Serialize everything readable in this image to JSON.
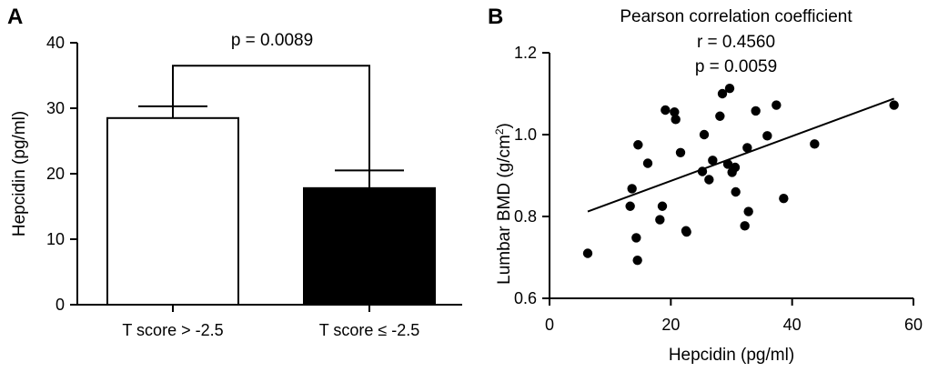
{
  "chart_data": [
    {
      "panel": "A",
      "type": "bar",
      "ylabel": "Hepcidin (pg/ml)",
      "xlabel": "",
      "ylim": [
        0,
        40
      ],
      "yticks": [
        0,
        10,
        20,
        30,
        40
      ],
      "categories": [
        "T score > -2.5",
        "T score ≤ -2.5"
      ],
      "values": [
        28.5,
        17.8
      ],
      "errors": [
        1.8,
        2.7
      ],
      "fills": [
        "#ffffff",
        "#000000"
      ],
      "significance": {
        "label": "p = 0.0089",
        "y": 36.5
      }
    },
    {
      "panel": "B",
      "type": "scatter",
      "title": "Pearson correlation coefficient",
      "stats": [
        "r = 0.4560",
        "p = 0.0059"
      ],
      "xlabel": "Hepcidin (pg/ml)",
      "ylabel_main": "Lumbar BMD (g/cm",
      "ylabel_sup": "2",
      "ylabel_end": ")",
      "xlim": [
        0,
        60
      ],
      "ylim": [
        0.6,
        1.2
      ],
      "xticks": [
        0,
        20,
        40,
        60
      ],
      "yticks": [
        "0.6",
        "0.8",
        "1.0",
        "1.2"
      ],
      "points": [
        [
          6.3,
          0.71
        ],
        [
          13.3,
          0.825
        ],
        [
          13.6,
          0.868
        ],
        [
          14.3,
          0.748
        ],
        [
          14.5,
          0.693
        ],
        [
          14.6,
          0.975
        ],
        [
          16.2,
          0.93
        ],
        [
          18.2,
          0.792
        ],
        [
          18.6,
          0.825
        ],
        [
          19.1,
          1.06
        ],
        [
          20.6,
          1.055
        ],
        [
          20.8,
          1.037
        ],
        [
          21.6,
          0.956
        ],
        [
          22.5,
          0.765
        ],
        [
          22.6,
          0.762
        ],
        [
          25.2,
          0.91
        ],
        [
          25.5,
          1.0
        ],
        [
          26.3,
          0.89
        ],
        [
          26.9,
          0.937
        ],
        [
          28.1,
          1.045
        ],
        [
          28.5,
          1.1
        ],
        [
          29.4,
          0.928
        ],
        [
          29.7,
          1.113
        ],
        [
          30.1,
          0.908
        ],
        [
          30.6,
          0.92
        ],
        [
          30.7,
          0.86
        ],
        [
          32.2,
          0.777
        ],
        [
          32.6,
          0.968
        ],
        [
          32.8,
          0.812
        ],
        [
          34.0,
          1.058
        ],
        [
          35.9,
          0.997
        ],
        [
          37.4,
          1.072
        ],
        [
          38.6,
          0.844
        ],
        [
          43.7,
          0.977
        ],
        [
          56.8,
          1.072
        ]
      ],
      "fit": {
        "x0": 6.3,
        "y0": 0.812,
        "x1": 56.8,
        "y1": 1.088
      }
    }
  ]
}
